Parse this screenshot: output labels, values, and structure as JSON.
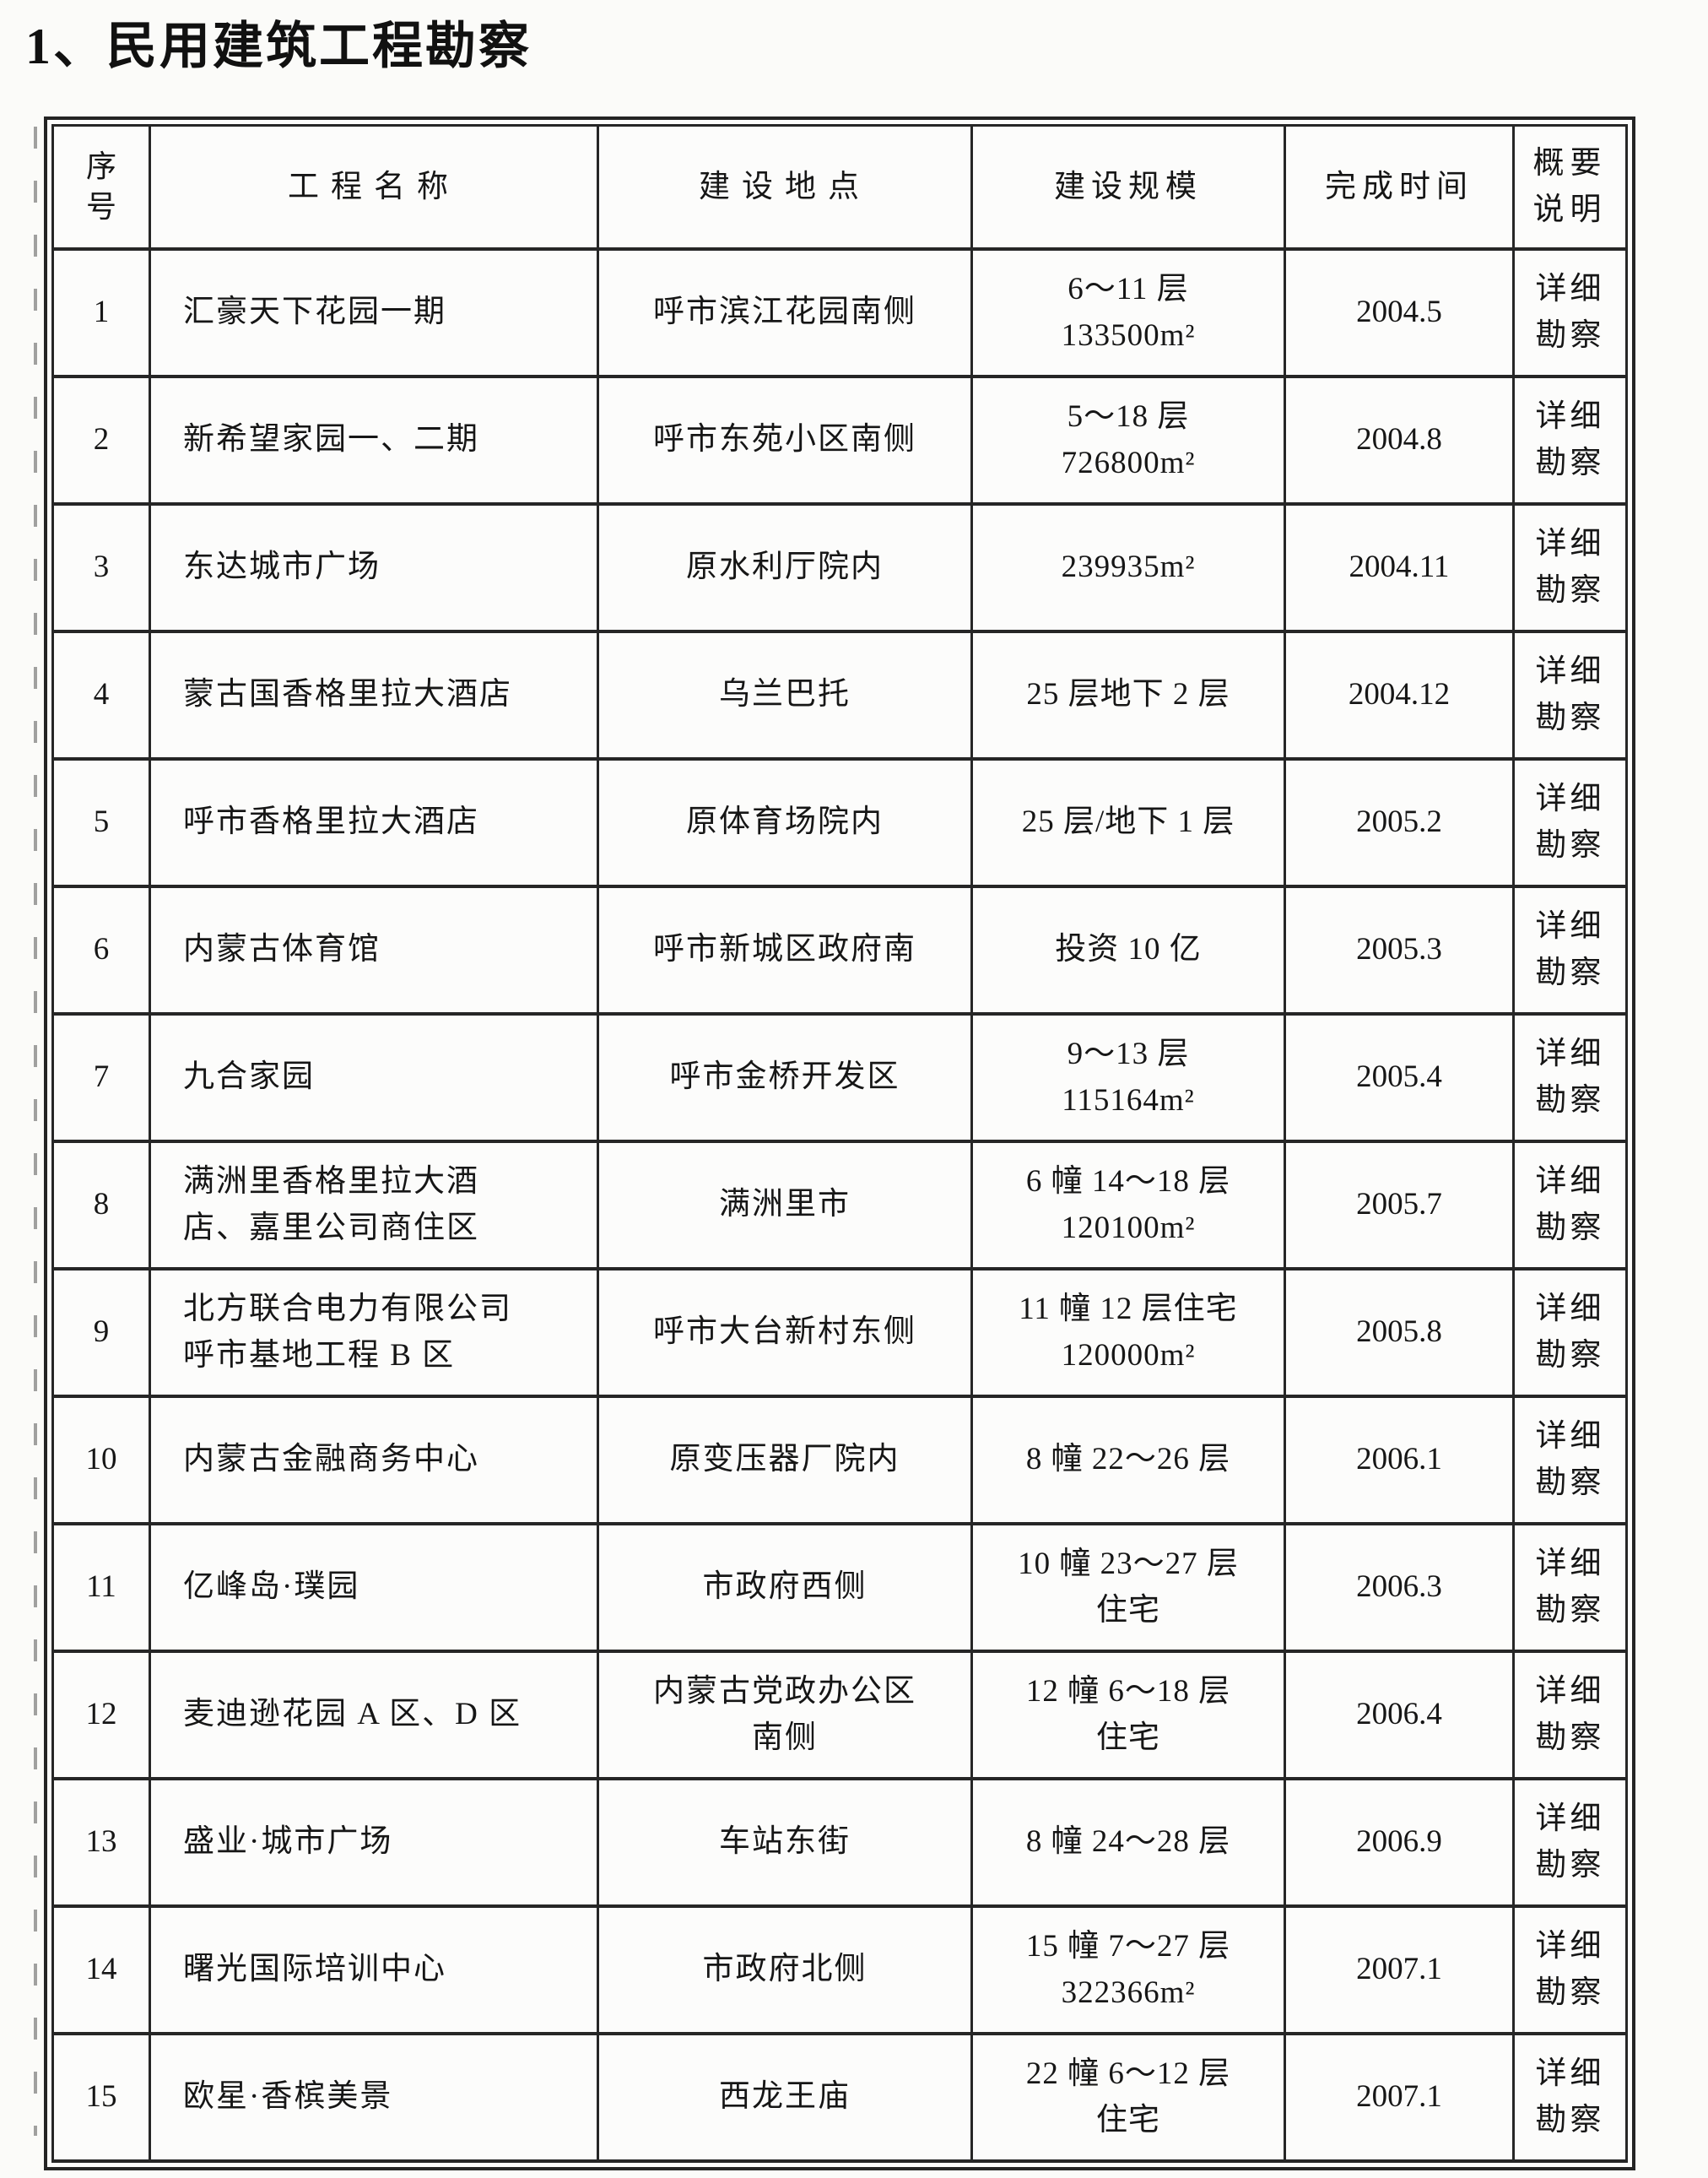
{
  "title": "1、民用建筑工程勘察",
  "table": {
    "headers": [
      "序\n号",
      "工程名称",
      "建设地点",
      "建设规模",
      "完成时间",
      "概要说明"
    ],
    "rows": [
      {
        "no": "1",
        "name": "汇豪天下花园一期",
        "location": "呼市滨江花园南侧",
        "scale": "6～11 层\n133500m²",
        "time": "2004.5",
        "note": "详细勘察"
      },
      {
        "no": "2",
        "name": "新希望家园一、二期",
        "location": "呼市东苑小区南侧",
        "scale": "5～18 层\n726800m²",
        "time": "2004.8",
        "note": "详细勘察"
      },
      {
        "no": "3",
        "name": "东达城市广场",
        "location": "原水利厅院内",
        "scale": "239935m²",
        "time": "2004.11",
        "note": "详细勘察"
      },
      {
        "no": "4",
        "name": "蒙古国香格里拉大酒店",
        "location": "乌兰巴托",
        "scale": "25 层地下 2 层",
        "time": "2004.12",
        "note": "详细勘察"
      },
      {
        "no": "5",
        "name": "呼市香格里拉大酒店",
        "location": "原体育场院内",
        "scale": "25 层/地下 1 层",
        "time": "2005.2",
        "note": "详细勘察"
      },
      {
        "no": "6",
        "name": "内蒙古体育馆",
        "location": "呼市新城区政府南",
        "scale": "投资 10 亿",
        "time": "2005.3",
        "note": "详细勘察"
      },
      {
        "no": "7",
        "name": "九合家园",
        "location": "呼市金桥开发区",
        "scale": "9～13 层\n115164m²",
        "time": "2005.4",
        "note": "详细勘察"
      },
      {
        "no": "8",
        "name": "满洲里香格里拉大酒\n店、嘉里公司商住区",
        "location": "满洲里市",
        "scale": "6 幢 14～18 层\n120100m²",
        "time": "2005.7",
        "note": "详细勘察"
      },
      {
        "no": "9",
        "name": "北方联合电力有限公司\n呼市基地工程 B 区",
        "location": "呼市大台新村东侧",
        "scale": "11 幢 12 层住宅\n120000m²",
        "time": "2005.8",
        "note": "详细勘察"
      },
      {
        "no": "10",
        "name": "内蒙古金融商务中心",
        "location": "原变压器厂院内",
        "scale": "8 幢 22～26 层",
        "time": "2006.1",
        "note": "详细勘察"
      },
      {
        "no": "11",
        "name": "亿峰岛·璞园",
        "location": "市政府西侧",
        "scale": "10 幢 23～27 层\n住宅",
        "time": "2006.3",
        "note": "详细勘察"
      },
      {
        "no": "12",
        "name": "麦迪逊花园 A 区、D 区",
        "location": "内蒙古党政办公区\n南侧",
        "scale": "12 幢 6～18 层\n住宅",
        "time": "2006.4",
        "note": "详细勘察"
      },
      {
        "no": "13",
        "name": "盛业·城市广场",
        "location": "车站东街",
        "scale": "8 幢 24～28 层",
        "time": "2006.9",
        "note": "详细勘察"
      },
      {
        "no": "14",
        "name": "曙光国际培训中心",
        "location": "市政府北侧",
        "scale": "15 幢 7～27 层\n322366m²",
        "time": "2007.1",
        "note": "详细勘察"
      },
      {
        "no": "15",
        "name": "欧星·香槟美景",
        "location": "西龙王庙",
        "scale": "22 幢 6～12 层\n住宅",
        "time": "2007.1",
        "note": "详细勘察"
      }
    ]
  }
}
